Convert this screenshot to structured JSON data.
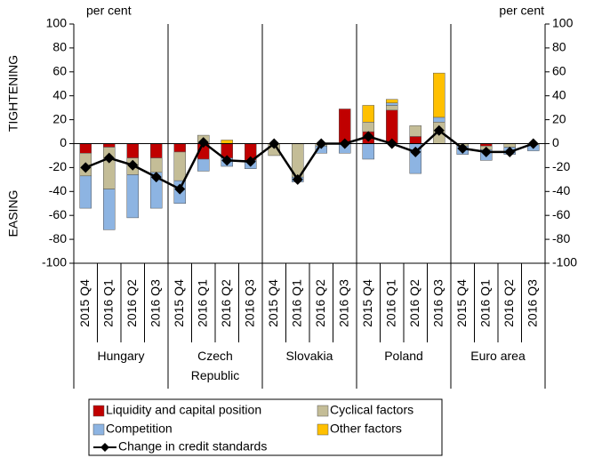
{
  "chart_data": {
    "type": "bar",
    "stacked": true,
    "y_label_top": "TIGHTENING",
    "y_label_bottom": "EASING",
    "y_unit": "per cent",
    "y2_unit": "per cent",
    "groups": [
      {
        "name": "Hungary",
        "categories": [
          "2015 Q4",
          "2016 Q1",
          "2016 Q2",
          "2016 Q3"
        ]
      },
      {
        "name": "Czech Republic",
        "categories": [
          "2015 Q4",
          "2016 Q1",
          "2016 Q2",
          "2016 Q3"
        ]
      },
      {
        "name": "Slovakia",
        "categories": [
          "2015 Q4",
          "2016 Q1",
          "2016 Q2",
          "2016 Q3"
        ]
      },
      {
        "name": "Poland",
        "categories": [
          "2015 Q4",
          "2016 Q1",
          "2016 Q2",
          "2016 Q3"
        ]
      },
      {
        "name": "Euro area",
        "categories": [
          "2015 Q4",
          "2016 Q1",
          "2016 Q2",
          "2016 Q3"
        ]
      }
    ],
    "series": [
      {
        "name": "Liquidity and capital position",
        "color": "#c00000",
        "values": [
          -8,
          -3,
          -12,
          -12,
          -7,
          -13,
          -12,
          -14,
          0,
          0,
          0,
          29,
          10,
          28,
          6,
          0,
          0,
          -2,
          0,
          0
        ]
      },
      {
        "name": "Cyclical factors",
        "color": "#c4bd97",
        "values": [
          -19,
          -35,
          -14,
          -12,
          -24,
          7,
          0,
          0,
          -10,
          -28,
          -2,
          0,
          8,
          4,
          9,
          18,
          -2,
          -3,
          -3,
          -1
        ]
      },
      {
        "name": "Competition",
        "color": "#8db4e2",
        "values": [
          -27,
          -34,
          -36,
          -30,
          -19,
          -10,
          -7,
          -7,
          0,
          -4,
          -6,
          -8,
          -13,
          2,
          -25,
          4,
          -7,
          -9,
          -6,
          -5
        ]
      },
      {
        "name": "Other factors",
        "color": "#ffc000",
        "values": [
          0,
          0,
          0,
          0,
          0,
          0,
          3,
          0,
          0,
          0,
          0,
          0,
          14,
          3,
          0,
          37,
          0,
          0,
          0,
          0
        ]
      },
      {
        "name": "Change in credit standards",
        "type": "line",
        "color": "#000000",
        "values": [
          -20,
          -12,
          -18,
          -28,
          -38,
          1,
          -14,
          -15,
          0,
          -30,
          0,
          0,
          6,
          0,
          -7,
          11,
          -4,
          -7,
          -7,
          0
        ]
      }
    ],
    "ylim": [
      -100,
      100
    ],
    "yticks": [
      -100,
      -80,
      -60,
      -40,
      -20,
      0,
      20,
      40,
      60,
      80,
      100
    ],
    "y2lim": [
      -100,
      100
    ],
    "y2ticks": [
      -100,
      -80,
      -60,
      -40,
      -20,
      0,
      20,
      40,
      60,
      80,
      100
    ],
    "grid": false
  }
}
